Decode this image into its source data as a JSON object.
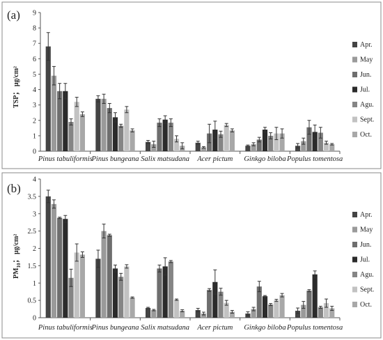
{
  "chart_data": [
    {
      "panel_label": "(a)",
      "type": "bar",
      "ylabel_main": "TSP",
      "ylabel_unit": "；  μg/cm²",
      "ylim": [
        0,
        9
      ],
      "yticks": [
        "0",
        "1",
        "2",
        "3",
        "4",
        "5",
        "6",
        "7",
        "8",
        "9"
      ],
      "categories": [
        "Pinus tabuliformis",
        "Pinus bungeana",
        "Salix matsudana",
        "Acer pictum",
        "Ginkgo biloba",
        "Populus tomentosa"
      ],
      "series": [
        {
          "name": "Apr.",
          "values": [
            6.8,
            3.4,
            0.6,
            0.55,
            0.35,
            0.35
          ],
          "errors": [
            0.9,
            0.2,
            0.1,
            0.1,
            0.05,
            0.15
          ]
        },
        {
          "name": "May",
          "values": [
            4.9,
            3.4,
            0.45,
            0.25,
            0.45,
            0.65
          ],
          "errors": [
            0.6,
            0.3,
            0.2,
            0.05,
            0.1,
            0.2
          ]
        },
        {
          "name": "Jun.",
          "values": [
            3.9,
            2.8,
            1.85,
            1.15,
            0.75,
            1.55
          ],
          "errors": [
            0.5,
            0.3,
            0.25,
            0.6,
            0.15,
            0.45
          ]
        },
        {
          "name": "Jul.",
          "values": [
            3.9,
            2.2,
            2.05,
            1.4,
            1.4,
            1.25
          ],
          "errors": [
            0.5,
            0.3,
            0.25,
            0.55,
            0.15,
            0.45
          ]
        },
        {
          "name": "Agu.",
          "values": [
            1.9,
            1.65,
            1.85,
            1.1,
            1.0,
            1.2
          ],
          "errors": [
            0.2,
            0.1,
            0.25,
            0.2,
            0.2,
            0.35
          ]
        },
        {
          "name": "Sept.",
          "values": [
            3.2,
            2.7,
            0.8,
            1.7,
            1.15,
            0.55
          ],
          "errors": [
            0.3,
            0.2,
            0.2,
            0.1,
            0.4,
            0.1
          ]
        },
        {
          "name": "Oct.",
          "values": [
            2.4,
            1.35,
            0.35,
            1.35,
            1.15,
            0.45
          ],
          "errors": [
            0.15,
            0.1,
            0.2,
            0.1,
            0.3,
            0.05
          ]
        }
      ]
    },
    {
      "panel_label": "(b)",
      "type": "bar",
      "ylabel_main": "PM",
      "ylabel_sub": "10",
      "ylabel_unit": "；  μg/cm²",
      "ylim": [
        0,
        4
      ],
      "yticks": [
        "0",
        "0.5",
        "1",
        "1.5",
        "2",
        "2.5",
        "3",
        "3.5",
        "4"
      ],
      "categories": [
        "Pinus tabuliformis",
        "Pinus bungeana",
        "Salix matsudana",
        "Acer pictum",
        "Ginkgo biloba",
        "Populus tomentosa"
      ],
      "series": [
        {
          "name": "Apr.",
          "values": [
            3.5,
            1.7,
            0.28,
            0.22,
            0.12,
            0.2
          ],
          "errors": [
            0.18,
            0.25,
            0.02,
            0.05,
            0.05,
            0.08
          ]
        },
        {
          "name": "May",
          "values": [
            3.28,
            2.5,
            0.22,
            0.12,
            0.25,
            0.37
          ],
          "errors": [
            0.12,
            0.2,
            0.02,
            0.04,
            0.05,
            0.1
          ]
        },
        {
          "name": "Jun.",
          "values": [
            2.88,
            2.38,
            1.42,
            0.8,
            0.9,
            0.78
          ],
          "errors": [
            0.02,
            0.03,
            0.1,
            0.04,
            0.15,
            0.03
          ]
        },
        {
          "name": "Jul.",
          "values": [
            2.85,
            1.42,
            1.48,
            1.03,
            0.62,
            1.25
          ],
          "errors": [
            0.1,
            0.1,
            0.25,
            0.35,
            0.02,
            0.1
          ]
        },
        {
          "name": "Agu.",
          "values": [
            1.15,
            1.18,
            1.62,
            0.75,
            0.38,
            0.3
          ],
          "errors": [
            0.25,
            0.1,
            0.03,
            0.1,
            0.03,
            0.03
          ]
        },
        {
          "name": "Sept.",
          "values": [
            1.88,
            1.48,
            0.52,
            0.43,
            0.5,
            0.42
          ],
          "errors": [
            0.25,
            0.05,
            0.02,
            0.07,
            0.03,
            0.12
          ]
        },
        {
          "name": "Oct.",
          "values": [
            1.82,
            0.58,
            0.2,
            0.17,
            0.65,
            0.27
          ],
          "errors": [
            0.08,
            0.02,
            0.03,
            0.04,
            0.05,
            0.06
          ]
        }
      ]
    }
  ],
  "colors": {
    "series": [
      "#444444",
      "#9a9a9a",
      "#6e6e6e",
      "#2b2b2b",
      "#858585",
      "#c2c2c2",
      "#a8a8a8"
    ],
    "error_bar": "#333333",
    "axis": "#555555",
    "frame": "#888888"
  }
}
